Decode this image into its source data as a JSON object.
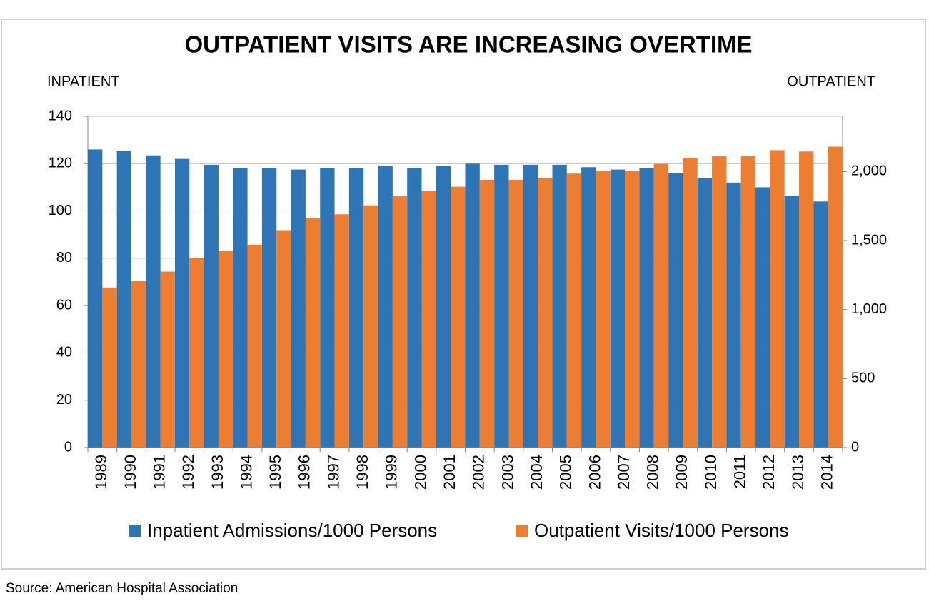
{
  "chart_data": {
    "type": "bar",
    "title": "OUTPATIENT VISITS ARE INCREASING OVERTIME",
    "y_label": "INPATIENT",
    "y2_label": "OUTPATIENT",
    "source": "Source: American Hospital Association",
    "categories": [
      "1989",
      "1990",
      "1991",
      "1992",
      "1993",
      "1994",
      "1995",
      "1996",
      "1997",
      "1998",
      "1999",
      "2000",
      "2001",
      "2002",
      "2003",
      "2004",
      "2005",
      "2006",
      "2007",
      "2008",
      "2009",
      "2010",
      "2011",
      "2012",
      "2013",
      "2014"
    ],
    "series": [
      {
        "name": "Inpatient Admissions/1000 Persons",
        "color": "#2e75b6",
        "values": [
          126,
          125.5,
          123.5,
          122,
          119.5,
          118,
          118,
          117.5,
          118,
          118,
          119,
          118,
          119,
          120,
          119.5,
          119.5,
          119.5,
          118.5,
          117.5,
          118,
          116,
          114,
          112,
          110,
          106.5,
          104
        ]
      },
      {
        "name": "Outpatient Visits/1000 Persons",
        "color": "#ed7d31",
        "axis": "y2",
        "values": [
          1160,
          1210,
          1275,
          1375,
          1425,
          1470,
          1575,
          1660,
          1690,
          1755,
          1820,
          1860,
          1890,
          1940,
          1940,
          1950,
          1985,
          2005,
          2005,
          2055,
          2095,
          2110,
          2110,
          2155,
          2145,
          2180
        ]
      }
    ],
    "ylim": [
      0,
      140
    ],
    "yticks": [
      0,
      20,
      40,
      60,
      80,
      100,
      120,
      140
    ],
    "y2lim": [
      0,
      2400
    ],
    "y2ticks": [
      0,
      500,
      {
        "value": 1000,
        "label": "1,000"
      },
      {
        "value": 1500,
        "label": "1,500"
      },
      {
        "value": 2000,
        "label": "2,000"
      }
    ],
    "grid": true
  }
}
